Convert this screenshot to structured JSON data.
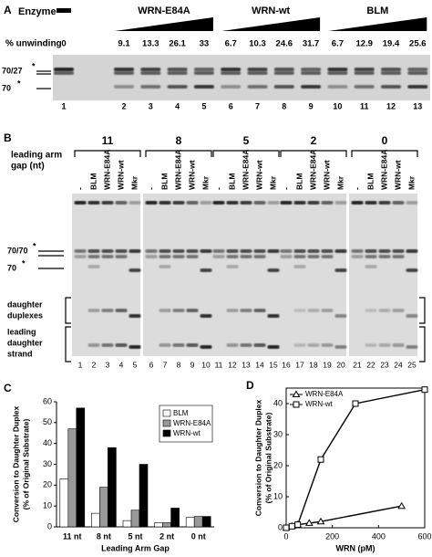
{
  "panel_a": {
    "letter": "A",
    "enzyme_label": "Enzyme",
    "groups": [
      "WRN-E84A",
      "WRN-wt",
      "BLM"
    ],
    "unwinding_label": "% unwinding",
    "unwinding": [
      0,
      9.1,
      13.3,
      26.1,
      33,
      6.7,
      10.3,
      24.6,
      31.7,
      6.7,
      12.9,
      19.4,
      25.6
    ],
    "lanes": [
      1,
      2,
      3,
      4,
      5,
      6,
      7,
      8,
      9,
      10,
      11,
      12,
      13
    ],
    "band_labels": [
      "70/27",
      "70"
    ],
    "star": "*"
  },
  "panel_b": {
    "letter": "B",
    "gap_label": [
      "leading arm",
      "gap (nt)"
    ],
    "gaps": [
      11,
      8,
      5,
      2,
      0
    ],
    "lane_labels": [
      "-",
      "BLM",
      "WRN-E84A",
      "WRN-wt",
      "Mkr"
    ],
    "lanes": [
      1,
      2,
      3,
      4,
      5,
      6,
      7,
      8,
      9,
      10,
      11,
      12,
      13,
      14,
      15,
      16,
      17,
      18,
      19,
      20,
      21,
      22,
      23,
      24,
      25
    ],
    "band_labels": [
      "70/70",
      "70"
    ],
    "star": "*",
    "daughter_duplexes": [
      "daughter",
      "duplexes"
    ],
    "leading_daughter": [
      "leading",
      "daughter",
      "strand"
    ]
  },
  "chart_data": [
    {
      "type": "bar",
      "letter": "C",
      "ylabel": [
        "Conversion to Daughter Duplex",
        "(% of Original Substrate)"
      ],
      "xlabel": "Leading Arm Gap",
      "categories": [
        "11 nt",
        "8 nt",
        "5 nt",
        "2 nt",
        "0 nt"
      ],
      "series": [
        {
          "name": "BLM",
          "color": "#ffffff",
          "values": [
            23,
            6.5,
            3,
            2,
            4.5
          ]
        },
        {
          "name": "WRN-E84A",
          "color": "#999999",
          "values": [
            47,
            19,
            8,
            2,
            5
          ]
        },
        {
          "name": "WRN-wt",
          "color": "#000000",
          "values": [
            57,
            38,
            30,
            9,
            5
          ]
        }
      ],
      "ylim": [
        0,
        60
      ],
      "yticks": [
        0,
        10,
        20,
        30,
        40,
        50,
        60
      ],
      "legend": "top-right"
    },
    {
      "type": "line",
      "letter": "D",
      "ylabel": [
        "Conversion to Daughter Duplex",
        "(% of Original Substrate)"
      ],
      "xlabel": "WRN (pM)",
      "series": [
        {
          "name": "WRN-E84A",
          "color": "#000000",
          "marker": "triangle",
          "x": [
            0,
            25,
            50,
            100,
            150,
            500
          ],
          "values": [
            0,
            0.5,
            1,
            1.5,
            2,
            7
          ]
        },
        {
          "name": "WRN-wt",
          "color": "#000000",
          "marker": "square",
          "x": [
            0,
            25,
            50,
            150,
            300,
            600
          ],
          "values": [
            0,
            0.5,
            1,
            22,
            40,
            44.5
          ]
        }
      ],
      "xlim": [
        0,
        600
      ],
      "xticks": [
        0,
        200,
        400,
        600
      ],
      "ylim": [
        0,
        45
      ],
      "yticks": [
        0,
        10,
        20,
        30,
        40
      ],
      "legend": "top-left"
    }
  ]
}
